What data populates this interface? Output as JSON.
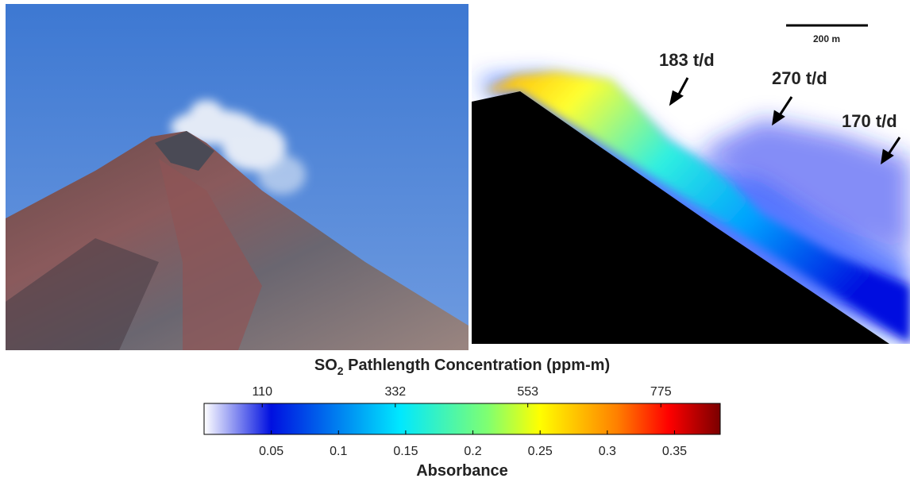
{
  "right_panel": {
    "scale_bar_label": "200 m",
    "annotations": [
      "183 t/d",
      "270 t/d",
      "170 t/d"
    ]
  },
  "colorbar": {
    "title": {
      "prefix": "SO",
      "subscript": "2",
      "suffix": " Pathlength Concentration (ppm-m)"
    },
    "top_ticks": [
      110,
      332,
      553,
      775
    ],
    "top_lim": [
      13,
      874
    ],
    "bottom_ticks": [
      0.05,
      0.1,
      0.15,
      0.2,
      0.25,
      0.3,
      0.35
    ],
    "bottom_lim": [
      0,
      0.384
    ],
    "bottom_label": "Absorbance"
  }
}
